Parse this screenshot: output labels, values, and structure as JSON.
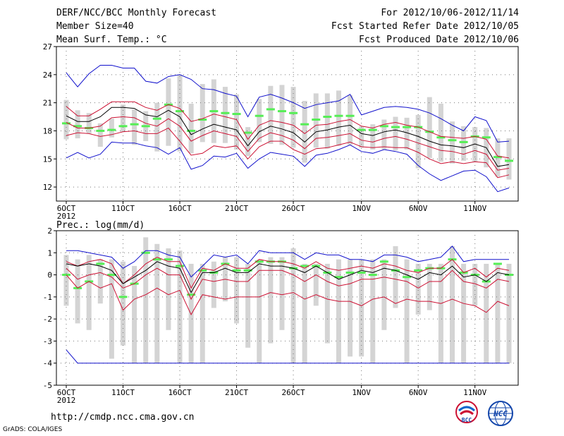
{
  "header": {
    "title": "DERF/NCC/BCC Monthly Forecast",
    "member_size": "Member Size=40",
    "variable": "Mean Surf. Temp.: °C",
    "period": "For 2012/10/06-2012/11/14",
    "started": "Fcst Started Refer Date 2012/10/05",
    "produced": "Fcst Produced Date 2012/10/06"
  },
  "footer": {
    "url": "http://cmdp.ncc.cma.gov.cn",
    "grads": "GrADS: COLA/IGES",
    "logo1_text": "BCC",
    "logo2_text": "NCC"
  },
  "colors": {
    "ensemble_max": "#1111cc",
    "ensemble_spread": "#cc1133",
    "ensemble_mean": "#000000",
    "member_bars": "#d4d4d4",
    "median_marker": "#55ee55",
    "grid": "#777777"
  },
  "chart_data": [
    {
      "type": "line",
      "title": "Mean Surf. Temp.: °C",
      "x": [
        "6OCT",
        "7OCT",
        "8OCT",
        "9OCT",
        "10OCT",
        "11OCT",
        "12OCT",
        "13OCT",
        "14OCT",
        "15OCT",
        "16OCT",
        "17OCT",
        "18OCT",
        "19OCT",
        "20OCT",
        "21OCT",
        "22OCT",
        "23OCT",
        "24OCT",
        "25OCT",
        "26OCT",
        "27OCT",
        "28OCT",
        "29OCT",
        "30OCT",
        "31OCT",
        "1NOV",
        "2NOV",
        "3NOV",
        "4NOV",
        "5NOV",
        "6NOV",
        "7NOV",
        "8NOV",
        "9NOV",
        "10NOV",
        "11NOV",
        "12NOV",
        "13NOV",
        "14NOV"
      ],
      "x_tick_labels": [
        "6OCT",
        "11OCT",
        "16OCT",
        "21OCT",
        "26OCT",
        "1NOV",
        "6NOV",
        "11NOV"
      ],
      "x_tick_index": [
        0,
        5,
        10,
        15,
        20,
        26,
        31,
        36
      ],
      "year_label": "2012",
      "ylim": [
        10.5,
        27
      ],
      "yticks": [
        12,
        15,
        18,
        21,
        24,
        27
      ],
      "series": [
        {
          "name": "max",
          "color": "#1111cc",
          "values": [
            24.2,
            22.7,
            24.1,
            25.0,
            25.0,
            24.7,
            24.7,
            23.3,
            23.1,
            23.8,
            24.0,
            23.5,
            22.5,
            22.4,
            22.0,
            21.7,
            19.5,
            21.6,
            21.9,
            21.5,
            21.0,
            20.4,
            20.8,
            21.0,
            21.2,
            21.9,
            19.7,
            20.1,
            20.5,
            20.6,
            20.5,
            20.3,
            19.9,
            19.3,
            18.6,
            18.0,
            19.5,
            19.1,
            16.8,
            16.9
          ]
        },
        {
          "name": "upper",
          "color": "#cc1133",
          "values": [
            20.6,
            19.6,
            19.6,
            20.3,
            21.1,
            21.1,
            21.1,
            20.5,
            20.2,
            20.8,
            20.4,
            19.0,
            19.3,
            19.8,
            19.5,
            19.2,
            17.1,
            18.6,
            19.1,
            18.9,
            18.6,
            17.7,
            18.6,
            18.7,
            19.0,
            19.2,
            18.5,
            18.3,
            18.7,
            18.9,
            18.6,
            18.4,
            17.9,
            17.4,
            17.3,
            17.2,
            17.4,
            17.1,
            15.3,
            15.1
          ]
        },
        {
          "name": "mean",
          "color": "#000000",
          "values": [
            19.6,
            19.0,
            19.0,
            19.5,
            20.5,
            20.5,
            20.4,
            19.7,
            19.5,
            20.2,
            19.5,
            17.6,
            18.2,
            18.7,
            18.4,
            18.1,
            16.4,
            17.9,
            18.5,
            18.2,
            17.8,
            16.8,
            17.9,
            18.1,
            18.4,
            18.6,
            17.7,
            17.5,
            17.9,
            18.1,
            17.8,
            17.4,
            16.9,
            16.5,
            16.4,
            16.2,
            16.6,
            16.2,
            14.2,
            14.4
          ]
        },
        {
          "name": "lower",
          "color": "#cc1133",
          "values": [
            18.9,
            18.3,
            18.3,
            18.5,
            19.4,
            19.5,
            19.4,
            18.8,
            18.5,
            19.3,
            18.5,
            16.9,
            17.5,
            18.0,
            17.7,
            17.4,
            15.8,
            17.2,
            17.8,
            17.5,
            17.0,
            16.1,
            17.2,
            17.3,
            17.5,
            17.7,
            17.0,
            16.8,
            17.2,
            17.4,
            17.1,
            16.7,
            16.3,
            15.9,
            15.8,
            15.5,
            15.9,
            15.5,
            13.8,
            14.0
          ]
        },
        {
          "name": "lower2",
          "color": "#cc1133",
          "values": [
            17.5,
            17.8,
            17.7,
            17.4,
            17.6,
            17.9,
            18.0,
            17.7,
            17.7,
            18.3,
            16.9,
            15.4,
            15.6,
            16.4,
            16.2,
            16.4,
            15.0,
            16.3,
            16.9,
            16.9,
            16.0,
            15.5,
            16.1,
            16.2,
            16.5,
            16.8,
            16.3,
            16.2,
            16.3,
            16.2,
            16.2,
            15.7,
            15.0,
            14.5,
            14.7,
            14.5,
            14.7,
            14.6,
            13.0,
            13.3
          ]
        },
        {
          "name": "min",
          "color": "#1111cc",
          "values": [
            15.1,
            15.7,
            15.1,
            15.5,
            16.8,
            16.7,
            16.7,
            16.4,
            16.2,
            15.5,
            16.2,
            13.9,
            14.3,
            15.3,
            15.2,
            15.6,
            14.0,
            15.0,
            15.7,
            15.5,
            15.3,
            14.2,
            15.4,
            15.6,
            16.0,
            16.5,
            15.8,
            15.6,
            16.0,
            15.8,
            15.5,
            14.3,
            13.4,
            12.7,
            13.2,
            13.7,
            13.8,
            13.1,
            11.5,
            11.9
          ]
        }
      ],
      "bars": {
        "top": [
          21.3,
          20.2,
          19.9,
          18.8,
          19.3,
          20.8,
          20.3,
          20.1,
          21.0,
          23.6,
          24.0,
          20.9,
          23.0,
          23.5,
          22.7,
          21.9,
          18.4,
          21.4,
          22.8,
          22.9,
          22.7,
          21.2,
          22.0,
          22.0,
          22.3,
          21.8,
          18.5,
          18.7,
          19.2,
          19.5,
          19.4,
          19.7,
          21.6,
          20.9,
          19.0,
          18.5,
          18.4,
          18.3,
          17.2,
          17.2
        ],
        "bottom": [
          17.1,
          17.2,
          17.7,
          16.3,
          17.3,
          17.9,
          16.5,
          16.9,
          15.8,
          16.4,
          15.8,
          15.6,
          16.8,
          16.7,
          16.7,
          16.0,
          15.3,
          16.8,
          16.6,
          16.5,
          16.2,
          14.6,
          16.2,
          16.1,
          16.4,
          16.5,
          16.2,
          16.0,
          16.0,
          15.9,
          16.0,
          14.0,
          15.1,
          14.7,
          14.5,
          14.8,
          14.7,
          14.1,
          13.1,
          12.8
        ],
        "median": [
          18.8,
          18.5,
          18.3,
          18.0,
          18.1,
          18.5,
          18.7,
          18.5,
          19.3,
          20.8,
          20.1,
          18.0,
          19.2,
          20.1,
          19.9,
          19.8,
          17.8,
          19.6,
          20.3,
          20.1,
          19.9,
          18.7,
          19.2,
          19.5,
          19.6,
          19.6,
          18.1,
          18.1,
          18.5,
          18.4,
          18.4,
          18.4,
          17.9,
          17.3,
          17.0,
          16.8,
          17.4,
          17.3,
          15.2,
          14.8
        ]
      }
    },
    {
      "type": "line",
      "title": "Prec.: log(mm/d)",
      "x_tick_labels": [
        "6OCT",
        "11OCT",
        "16OCT",
        "21OCT",
        "26OCT",
        "1NOV",
        "6NOV",
        "11NOV"
      ],
      "x_tick_index": [
        0,
        5,
        10,
        15,
        20,
        26,
        31,
        36
      ],
      "year_label": "2012",
      "ylim": [
        -5,
        2
      ],
      "yticks": [
        -5,
        -4,
        -3,
        -2,
        -1,
        0,
        1,
        2
      ],
      "series": [
        {
          "name": "max",
          "color": "#1111cc",
          "values": [
            1.1,
            1.1,
            1.0,
            0.9,
            0.8,
            0.3,
            0.6,
            1.1,
            1.1,
            0.9,
            0.8,
            -0.1,
            0.4,
            0.9,
            0.8,
            0.9,
            0.5,
            1.1,
            1.0,
            1.0,
            1.0,
            0.7,
            1.0,
            0.9,
            0.9,
            0.7,
            0.7,
            0.6,
            0.9,
            0.9,
            0.8,
            0.6,
            0.7,
            0.8,
            1.3,
            0.6,
            0.7,
            0.7,
            0.7,
            0.7
          ]
        },
        {
          "name": "upper",
          "color": "#cc1133",
          "values": [
            0.6,
            0.4,
            0.6,
            0.7,
            0.5,
            -0.4,
            0.0,
            0.5,
            0.8,
            0.6,
            0.6,
            -0.6,
            0.3,
            0.2,
            0.5,
            0.3,
            0.3,
            0.7,
            0.6,
            0.6,
            0.5,
            0.3,
            0.6,
            0.3,
            0.2,
            0.3,
            0.4,
            0.3,
            0.5,
            0.4,
            0.2,
            0.1,
            0.3,
            0.3,
            0.7,
            0.1,
            0.3,
            -0.1,
            0.3,
            0.2
          ]
        },
        {
          "name": "mean",
          "color": "#000000",
          "values": [
            0.5,
            0.4,
            0.5,
            0.4,
            0.2,
            -0.4,
            -0.1,
            0.2,
            0.6,
            0.4,
            0.3,
            -0.8,
            0.1,
            0.1,
            0.3,
            0.1,
            0.1,
            0.5,
            0.4,
            0.4,
            0.3,
            0.1,
            0.4,
            0.1,
            -0.2,
            0.0,
            0.2,
            0.1,
            0.3,
            0.2,
            0.0,
            -0.2,
            0.1,
            0.0,
            0.4,
            -0.1,
            0.0,
            -0.3,
            0.1,
            0.0
          ]
        },
        {
          "name": "lower",
          "color": "#cc1133",
          "values": [
            0.3,
            -0.2,
            0.0,
            0.1,
            -0.1,
            -0.6,
            -0.4,
            0.0,
            0.3,
            0.0,
            0.0,
            -1.1,
            -0.2,
            -0.3,
            -0.2,
            -0.3,
            -0.3,
            0.2,
            0.2,
            0.2,
            0.0,
            -0.3,
            0.0,
            -0.3,
            -0.5,
            -0.4,
            -0.2,
            -0.2,
            -0.1,
            -0.2,
            -0.3,
            -0.6,
            -0.3,
            -0.3,
            0.2,
            -0.3,
            -0.4,
            -0.6,
            -0.2,
            -0.3
          ]
        },
        {
          "name": "lower2",
          "color": "#cc1133",
          "values": [
            0.0,
            -0.6,
            -0.3,
            -0.6,
            -0.4,
            -1.6,
            -1.1,
            -0.9,
            -0.6,
            -0.9,
            -0.7,
            -1.8,
            -0.9,
            -1.0,
            -1.1,
            -1.0,
            -1.0,
            -1.0,
            -0.8,
            -0.9,
            -0.8,
            -1.1,
            -0.9,
            -1.1,
            -1.2,
            -1.2,
            -1.4,
            -1.1,
            -1.0,
            -1.3,
            -1.1,
            -1.2,
            -1.2,
            -1.3,
            -1.1,
            -1.3,
            -1.4,
            -1.7,
            -1.2,
            -1.4
          ]
        },
        {
          "name": "min",
          "color": "#1111cc",
          "values": [
            -3.4,
            -4.0,
            -4.0,
            -4.0,
            -4.0,
            -4.0,
            -4.0,
            -4.0,
            -4.0,
            -4.0,
            -4.0,
            -4.0,
            -4.0,
            -4.0,
            -4.0,
            -4.0,
            -4.0,
            -4.0,
            -4.0,
            -4.0,
            -4.0,
            -4.0,
            -4.0,
            -4.0,
            -4.0,
            -4.0,
            -4.0,
            -4.0,
            -4.0,
            -4.0,
            -4.0,
            -4.0,
            -4.0,
            -4.0,
            -4.0,
            -4.0,
            -4.0,
            -4.0,
            -4.0,
            -4.0
          ]
        }
      ],
      "bars": {
        "top": [
          0.9,
          0.7,
          0.9,
          0.7,
          0.7,
          0.6,
          0.4,
          1.7,
          1.4,
          1.2,
          1.1,
          0.5,
          0.5,
          0.6,
          0.8,
          0.8,
          0.5,
          0.7,
          0.8,
          0.8,
          1.2,
          0.5,
          0.5,
          0.5,
          0.7,
          0.7,
          0.7,
          0.7,
          0.7,
          1.3,
          0.7,
          0.5,
          0.5,
          0.5,
          1.3,
          0.5,
          0.5,
          0.5,
          0.5,
          0.5
        ],
        "bottom": [
          -1.4,
          -2.2,
          -2.5,
          -1.3,
          -3.8,
          -3.2,
          -4.0,
          -4.0,
          -4.0,
          -2.5,
          -4.0,
          -4.0,
          -4.0,
          -1.5,
          -1.2,
          -2.2,
          -3.3,
          -4.0,
          -3.1,
          -2.5,
          -4.0,
          -4.0,
          -1.4,
          -3.1,
          -4.0,
          -3.7,
          -3.7,
          -4.0,
          -2.5,
          -1.5,
          -4.0,
          -1.8,
          -1.6,
          -4.0,
          -4.0,
          -4.0,
          -1.4,
          -4.0,
          -4.0,
          -4.0
        ],
        "median": [
          0.0,
          -0.6,
          -0.3,
          0.5,
          0.0,
          -1.0,
          -0.4,
          1.0,
          0.7,
          0.7,
          0.4,
          -0.9,
          0.2,
          0.1,
          0.5,
          0.2,
          0.2,
          0.6,
          0.6,
          0.6,
          0.3,
          0.4,
          0.4,
          0.1,
          -0.1,
          0.1,
          0.1,
          0.0,
          0.6,
          0.2,
          -0.1,
          0.2,
          0.3,
          0.3,
          0.7,
          0.1,
          0.0,
          -0.3,
          0.5,
          0.0
        ]
      }
    }
  ]
}
